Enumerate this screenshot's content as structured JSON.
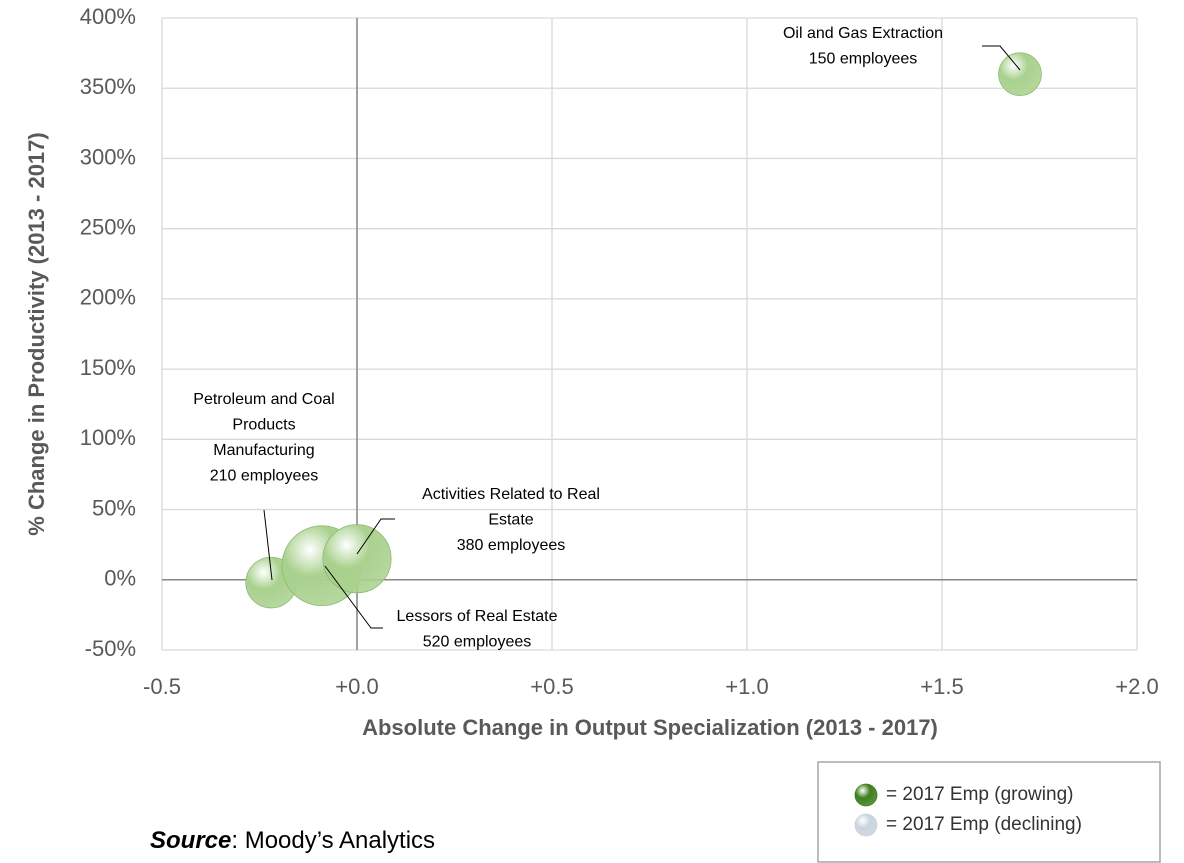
{
  "chart_data": {
    "type": "bubble",
    "x_label": "Absolute Change in Output Specialization (2013 - 2017)",
    "y_label": "% Change in Productivity (2013 - 2017)",
    "xlim": [
      -0.5,
      2.0
    ],
    "xticks": [
      -0.5,
      {
        "value": 0,
        "label": "+0.0"
      },
      {
        "value": 0.5,
        "label": "+0.5"
      },
      {
        "value": 1.0,
        "label": "+1.0"
      },
      {
        "value": 1.5,
        "label": "+1.5"
      },
      {
        "value": 2.0,
        "label": "+2.0"
      }
    ],
    "ylim": [
      -50,
      400
    ],
    "yticks": [
      {
        "value": -50,
        "label": "-50%"
      },
      {
        "value": 0,
        "label": "0%"
      },
      {
        "value": 50,
        "label": "50%"
      },
      {
        "value": 100,
        "label": "100%"
      },
      {
        "value": 150,
        "label": "150%"
      },
      {
        "value": 200,
        "label": "200%"
      },
      {
        "value": 250,
        "label": "250%"
      },
      {
        "value": 300,
        "label": "300%"
      },
      {
        "value": 350,
        "label": "350%"
      },
      {
        "value": 400,
        "label": "400%"
      }
    ],
    "grid": true,
    "color": "#a9d18e",
    "x": [
      1.7,
      -0.22,
      -0.09,
      0.0
    ],
    "values": [
      360,
      -2,
      10,
      15
    ],
    "sizes": [
      150,
      210,
      520,
      380
    ],
    "size_labels": [
      "150 employees",
      "210 employees",
      "520 employees",
      "380 employees"
    ],
    "labels": [
      [
        "Oil and Gas Extraction"
      ],
      [
        "Petroleum and Coal",
        "Products",
        "Manufacturing"
      ],
      [
        "Lessors of Real Estate"
      ],
      [
        "Activities Related to Real",
        "Estate"
      ]
    ],
    "legend": [
      {
        "label": "= 2017 Emp (growing)",
        "color": "#3f7f1f"
      },
      {
        "label": "= 2017 Emp (declining)",
        "color": "#c9d3de"
      }
    ],
    "source_label": "Source",
    "source": ": Moody’s Analytics"
  }
}
